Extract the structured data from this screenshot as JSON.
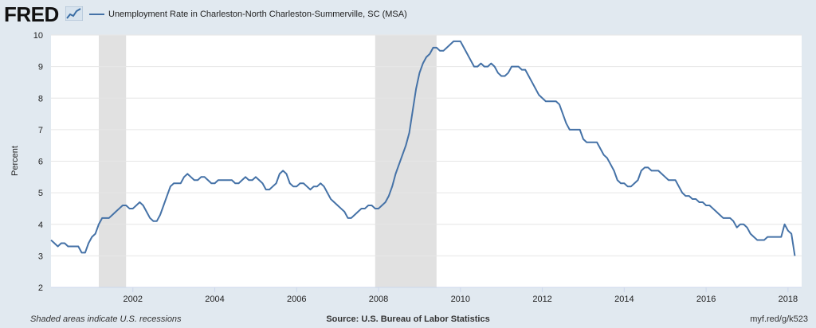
{
  "header": {
    "logo_text": "FRED",
    "logo_icon": "trend-line-icon",
    "legend_label": "Unemployment Rate in Charleston-North Charleston-Summerville, SC (MSA)"
  },
  "footer": {
    "note": "Shaded areas indicate U.S. recessions",
    "source": "Source: U.S. Bureau of Labor Statistics",
    "link": "myf.red/g/k523"
  },
  "chart_data": {
    "type": "line",
    "title": "",
    "xlabel": "",
    "ylabel": "Percent",
    "xlim": [
      "2000-01",
      "2018-05"
    ],
    "ylim": [
      2,
      10
    ],
    "y_ticks": [
      2,
      3,
      4,
      5,
      6,
      7,
      8,
      9,
      10
    ],
    "x_ticks": [
      "2002",
      "2004",
      "2006",
      "2008",
      "2010",
      "2012",
      "2014",
      "2016",
      "2018"
    ],
    "grid": true,
    "legend_position": "top-left",
    "colors": {
      "line": "#4572a7",
      "recession": "#e1e1e1",
      "grid": "#e6e6e6"
    },
    "recessions": [
      {
        "start": "2001-03",
        "end": "2001-11"
      },
      {
        "start": "2007-12",
        "end": "2009-06"
      }
    ],
    "series": [
      {
        "name": "Unemployment Rate in Charleston-North Charleston-Summerville, SC (MSA)",
        "frequency": "monthly",
        "start": "2000-01",
        "values": [
          3.5,
          3.4,
          3.3,
          3.4,
          3.4,
          3.3,
          3.3,
          3.3,
          3.3,
          3.1,
          3.1,
          3.4,
          3.6,
          3.7,
          4.0,
          4.2,
          4.2,
          4.2,
          4.3,
          4.4,
          4.5,
          4.6,
          4.6,
          4.5,
          4.5,
          4.6,
          4.7,
          4.6,
          4.4,
          4.2,
          4.1,
          4.1,
          4.3,
          4.6,
          4.9,
          5.2,
          5.3,
          5.3,
          5.3,
          5.5,
          5.6,
          5.5,
          5.4,
          5.4,
          5.5,
          5.5,
          5.4,
          5.3,
          5.3,
          5.4,
          5.4,
          5.4,
          5.4,
          5.4,
          5.3,
          5.3,
          5.4,
          5.5,
          5.4,
          5.4,
          5.5,
          5.4,
          5.3,
          5.1,
          5.1,
          5.2,
          5.3,
          5.6,
          5.7,
          5.6,
          5.3,
          5.2,
          5.2,
          5.3,
          5.3,
          5.2,
          5.1,
          5.2,
          5.2,
          5.3,
          5.2,
          5.0,
          4.8,
          4.7,
          4.6,
          4.5,
          4.4,
          4.2,
          4.2,
          4.3,
          4.4,
          4.5,
          4.5,
          4.6,
          4.6,
          4.5,
          4.5,
          4.6,
          4.7,
          4.9,
          5.2,
          5.6,
          5.9,
          6.2,
          6.5,
          6.9,
          7.6,
          8.3,
          8.8,
          9.1,
          9.3,
          9.4,
          9.6,
          9.6,
          9.5,
          9.5,
          9.6,
          9.7,
          9.8,
          9.8,
          9.8,
          9.6,
          9.4,
          9.2,
          9.0,
          9.0,
          9.1,
          9.0,
          9.0,
          9.1,
          9.0,
          8.8,
          8.7,
          8.7,
          8.8,
          9.0,
          9.0,
          9.0,
          8.9,
          8.9,
          8.7,
          8.5,
          8.3,
          8.1,
          8.0,
          7.9,
          7.9,
          7.9,
          7.9,
          7.8,
          7.5,
          7.2,
          7.0,
          7.0,
          7.0,
          7.0,
          6.7,
          6.6,
          6.6,
          6.6,
          6.6,
          6.4,
          6.2,
          6.1,
          5.9,
          5.7,
          5.4,
          5.3,
          5.3,
          5.2,
          5.2,
          5.3,
          5.4,
          5.7,
          5.8,
          5.8,
          5.7,
          5.7,
          5.7,
          5.6,
          5.5,
          5.4,
          5.4,
          5.4,
          5.2,
          5.0,
          4.9,
          4.9,
          4.8,
          4.8,
          4.7,
          4.7,
          4.6,
          4.6,
          4.5,
          4.4,
          4.3,
          4.2,
          4.2,
          4.2,
          4.1,
          3.9,
          4.0,
          4.0,
          3.9,
          3.7,
          3.6,
          3.5,
          3.5,
          3.5,
          3.6,
          3.6,
          3.6,
          3.6,
          3.6,
          4.0,
          3.8,
          3.7,
          3.0
        ]
      }
    ]
  }
}
